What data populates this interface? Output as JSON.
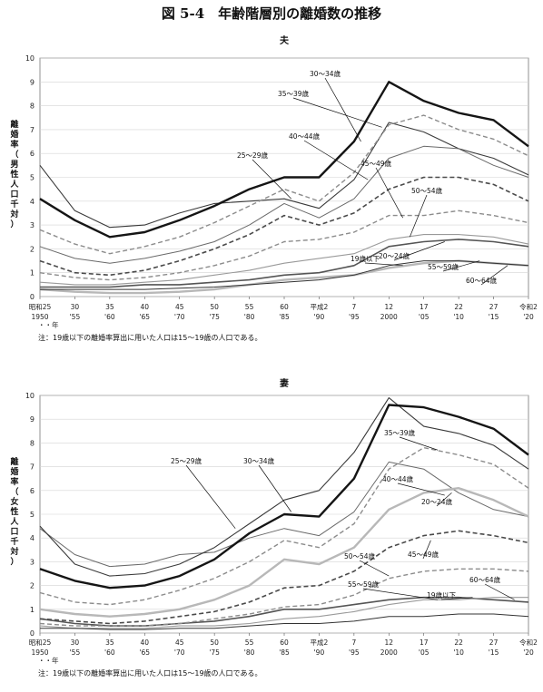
{
  "title": "図 5-4　年齢階層別の離婚数の推移",
  "colors": {
    "black": "#1a1a1a",
    "darkgray": "#4a4a4a",
    "midgray": "#7a7a7a",
    "lightgray": "#aaaaaa",
    "dashed": "#8a8a8a"
  },
  "chart_data": [
    {
      "type": "line",
      "title": "夫",
      "ylabel": "離婚率（男性人口千対）",
      "xunit": "年",
      "ylim": [
        0,
        10
      ],
      "yticks": [
        "0",
        "1",
        "2",
        "3",
        "4",
        "5",
        "6",
        "7",
        "8",
        "9",
        "10"
      ],
      "xticks": [
        {
          "top": "昭和25",
          "bottom": "1950"
        },
        {
          "top": "30",
          "bottom": "'55"
        },
        {
          "top": "35",
          "bottom": "'60"
        },
        {
          "top": "40",
          "bottom": "'65"
        },
        {
          "top": "45",
          "bottom": "'70"
        },
        {
          "top": "50",
          "bottom": "'75"
        },
        {
          "top": "55",
          "bottom": "'80"
        },
        {
          "top": "60",
          "bottom": "'85"
        },
        {
          "top": "平成2",
          "bottom": "'90"
        },
        {
          "top": "7",
          "bottom": "'95"
        },
        {
          "top": "12",
          "bottom": "2000"
        },
        {
          "top": "17",
          "bottom": "'05"
        },
        {
          "top": "22",
          "bottom": "'10"
        },
        {
          "top": "27",
          "bottom": "'15"
        },
        {
          "top": "令和2",
          "bottom": "'20"
        }
      ],
      "x": [
        1950,
        1955,
        1960,
        1965,
        1970,
        1975,
        1980,
        1985,
        1990,
        1995,
        2000,
        2005,
        2010,
        2015,
        2020
      ],
      "series": [
        {
          "name": "19歳以下",
          "style": "thick-light",
          "values": [
            0.3,
            0.2,
            0.15,
            0.15,
            0.2,
            0.3,
            0.5,
            0.7,
            0.8,
            0.9,
            1.2,
            1.4,
            1.5,
            1.4,
            1.3
          ]
        },
        {
          "name": "20～24歳",
          "style": "dark",
          "values": [
            5.5,
            3.6,
            2.9,
            3.0,
            3.5,
            3.9,
            4.0,
            4.1,
            3.7,
            4.9,
            7.3,
            6.9,
            6.2,
            5.8,
            5.1
          ]
        },
        {
          "name": "25～29歳",
          "style": "thin",
          "values": [
            2.1,
            1.6,
            1.4,
            1.6,
            1.9,
            2.3,
            3.0,
            3.9,
            3.3,
            4.1,
            5.8,
            6.3,
            6.2,
            5.5,
            5.0
          ]
        },
        {
          "name": "30～34歳",
          "style": "black-thick",
          "values": [
            4.1,
            3.2,
            2.5,
            2.7,
            3.2,
            3.8,
            4.5,
            5.0,
            5.0,
            6.5,
            9.0,
            8.2,
            7.7,
            7.4,
            6.3
          ]
        },
        {
          "name": "35～39歳",
          "style": "dashed",
          "values": [
            2.8,
            2.2,
            1.8,
            2.1,
            2.5,
            3.1,
            3.8,
            4.5,
            4.0,
            5.2,
            7.2,
            7.6,
            7.0,
            6.6,
            5.9
          ]
        },
        {
          "name": "40～44歳",
          "style": "dashed-dark",
          "values": [
            1.5,
            1.0,
            0.9,
            1.1,
            1.5,
            2.0,
            2.6,
            3.4,
            3.0,
            3.5,
            4.5,
            5.0,
            5.0,
            4.7,
            4.0
          ]
        },
        {
          "name": "45～49歳",
          "style": "dashed",
          "values": [
            1.0,
            0.8,
            0.7,
            0.8,
            1.0,
            1.3,
            1.7,
            2.3,
            2.4,
            2.7,
            3.4,
            3.4,
            3.6,
            3.4,
            3.1
          ]
        },
        {
          "name": "50～54歳",
          "style": "gray",
          "values": [
            0.6,
            0.5,
            0.5,
            0.6,
            0.7,
            0.9,
            1.1,
            1.4,
            1.6,
            1.8,
            2.4,
            2.6,
            2.6,
            2.5,
            2.2
          ]
        },
        {
          "name": "55～59歳",
          "style": "dark-mid",
          "values": [
            0.4,
            0.4,
            0.4,
            0.5,
            0.5,
            0.6,
            0.7,
            0.9,
            1.0,
            1.3,
            2.1,
            2.3,
            2.4,
            2.3,
            2.1
          ]
        },
        {
          "name": "60～64歳",
          "style": "dark-thin",
          "values": [
            0.3,
            0.3,
            0.3,
            0.3,
            0.35,
            0.4,
            0.5,
            0.6,
            0.7,
            0.9,
            1.3,
            1.5,
            1.5,
            1.4,
            1.3
          ]
        }
      ],
      "note": "注：19歳以下の離婚率算出に用いた人口は15～19歳の人口である。"
    },
    {
      "type": "line",
      "title": "妻",
      "ylabel": "離婚率（女性人口千対）",
      "xunit": "年",
      "ylim": [
        0,
        10
      ],
      "yticks": [
        "0",
        "1",
        "2",
        "3",
        "4",
        "5",
        "6",
        "7",
        "8",
        "9",
        "10"
      ],
      "xticks": [
        {
          "top": "昭和25",
          "bottom": "1950"
        },
        {
          "top": "30",
          "bottom": "'55"
        },
        {
          "top": "35",
          "bottom": "'60"
        },
        {
          "top": "40",
          "bottom": "'65"
        },
        {
          "top": "45",
          "bottom": "'70"
        },
        {
          "top": "50",
          "bottom": "'75"
        },
        {
          "top": "55",
          "bottom": "'80"
        },
        {
          "top": "60",
          "bottom": "'85"
        },
        {
          "top": "平成2",
          "bottom": "'90"
        },
        {
          "top": "7",
          "bottom": "'95"
        },
        {
          "top": "12",
          "bottom": "2000"
        },
        {
          "top": "17",
          "bottom": "'05"
        },
        {
          "top": "22",
          "bottom": "'10"
        },
        {
          "top": "27",
          "bottom": "'15"
        },
        {
          "top": "令和2",
          "bottom": "'20"
        }
      ],
      "x": [
        1950,
        1955,
        1960,
        1965,
        1970,
        1975,
        1980,
        1985,
        1990,
        1995,
        2000,
        2005,
        2010,
        2015,
        2020
      ],
      "series": [
        {
          "name": "19歳以下",
          "style": "dark-mid",
          "values": [
            0.6,
            0.4,
            0.3,
            0.3,
            0.4,
            0.5,
            0.7,
            1.0,
            1.0,
            1.2,
            1.4,
            1.5,
            1.5,
            1.4,
            1.3
          ]
        },
        {
          "name": "20～24歳",
          "style": "thin",
          "values": [
            4.4,
            3.3,
            2.8,
            2.9,
            3.3,
            3.4,
            4.0,
            4.4,
            4.1,
            5.1,
            7.2,
            6.9,
            5.9,
            5.2,
            4.9
          ]
        },
        {
          "name": "25～29歳",
          "style": "dark",
          "values": [
            4.5,
            2.9,
            2.4,
            2.5,
            2.9,
            3.6,
            4.6,
            5.6,
            6.0,
            7.6,
            9.9,
            8.7,
            8.4,
            7.9,
            6.9
          ]
        },
        {
          "name": "30～34歳",
          "style": "black-thick",
          "values": [
            2.7,
            2.2,
            1.9,
            2.0,
            2.4,
            3.1,
            4.2,
            5.0,
            4.9,
            6.5,
            9.6,
            9.5,
            9.1,
            8.6,
            7.5
          ]
        },
        {
          "name": "35～39歳",
          "style": "dashed",
          "values": [
            1.7,
            1.3,
            1.2,
            1.4,
            1.8,
            2.3,
            3.0,
            3.9,
            3.6,
            4.6,
            6.9,
            7.8,
            7.5,
            7.1,
            6.1
          ]
        },
        {
          "name": "40～44歳",
          "style": "thick-light",
          "values": [
            1.0,
            0.8,
            0.7,
            0.8,
            1.0,
            1.4,
            2.0,
            3.1,
            2.9,
            3.6,
            5.2,
            5.9,
            6.1,
            5.6,
            4.9
          ]
        },
        {
          "name": "45～49歳",
          "style": "dashed-dark",
          "values": [
            0.6,
            0.5,
            0.4,
            0.5,
            0.7,
            0.9,
            1.3,
            1.9,
            2.0,
            2.6,
            3.6,
            4.1,
            4.3,
            4.1,
            3.8
          ]
        },
        {
          "name": "50～54歳",
          "style": "dashed",
          "values": [
            0.4,
            0.3,
            0.3,
            0.3,
            0.4,
            0.6,
            0.8,
            1.1,
            1.2,
            1.6,
            2.3,
            2.6,
            2.7,
            2.7,
            2.6
          ]
        },
        {
          "name": "55～59歳",
          "style": "gray",
          "values": [
            0.3,
            0.2,
            0.2,
            0.2,
            0.3,
            0.3,
            0.4,
            0.6,
            0.7,
            0.9,
            1.2,
            1.4,
            1.4,
            1.5,
            1.5
          ]
        },
        {
          "name": "60～64歳",
          "style": "dark-thin",
          "values": [
            0.2,
            0.2,
            0.15,
            0.15,
            0.2,
            0.2,
            0.3,
            0.4,
            0.4,
            0.5,
            0.7,
            0.7,
            0.8,
            0.8,
            0.7
          ]
        }
      ],
      "note": "注：19歳以下の離婚率算出に用いた人口は15～19歳の人口である。"
    }
  ]
}
